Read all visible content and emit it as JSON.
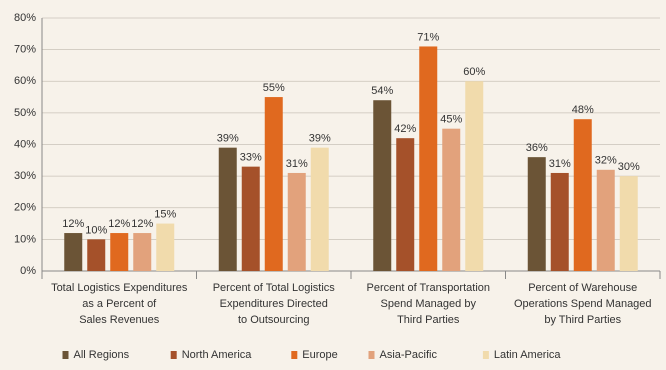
{
  "chart_data": {
    "type": "bar",
    "categories": [
      "Total Logistics Expenditures\nas a Percent of\nSales Revenues",
      "Percent of Total Logistics\nExpenditures Directed\nto Outsourcing",
      "Percent of Transportation\nSpend Managed by\nThird Parties",
      "Percent of Warehouse\nOperations Spend Managed\nby Third Parties"
    ],
    "series": [
      {
        "name": "All Regions",
        "color": "#6b5436",
        "values": [
          12,
          39,
          54,
          36
        ],
        "value_labels": [
          "12%",
          "39%",
          "54%",
          "36%"
        ]
      },
      {
        "name": "North America",
        "color": "#a5512a",
        "values": [
          10,
          33,
          42,
          31
        ],
        "value_labels": [
          "10%",
          "33%",
          "42%",
          "31%"
        ]
      },
      {
        "name": "Europe",
        "color": "#e0691f",
        "values": [
          12,
          55,
          71,
          48
        ],
        "value_labels": [
          "12%",
          "55%",
          "71%",
          "48%"
        ]
      },
      {
        "name": "Asia-Pacific",
        "color": "#e2a27c",
        "values": [
          12,
          31,
          45,
          32
        ],
        "value_labels": [
          "12%",
          "31%",
          "45%",
          "32%"
        ]
      },
      {
        "name": "Latin America",
        "color": "#f1dbac",
        "values": [
          15,
          39,
          60,
          30
        ],
        "value_labels": [
          "15%",
          "39%",
          "60%",
          "30%"
        ]
      }
    ],
    "ylim": [
      0,
      80
    ],
    "yticks": [
      {
        "value": 0,
        "label": "0%"
      },
      {
        "value": 10,
        "label": "10%"
      },
      {
        "value": 20,
        "label": "20%"
      },
      {
        "value": 30,
        "label": "30%"
      },
      {
        "value": 40,
        "label": "40%"
      },
      {
        "value": 50,
        "label": "50%"
      },
      {
        "value": 60,
        "label": "60%"
      },
      {
        "value": 70,
        "label": "70%"
      },
      {
        "value": 80,
        "label": "80%"
      }
    ],
    "grid": true,
    "legend": "bottom"
  }
}
